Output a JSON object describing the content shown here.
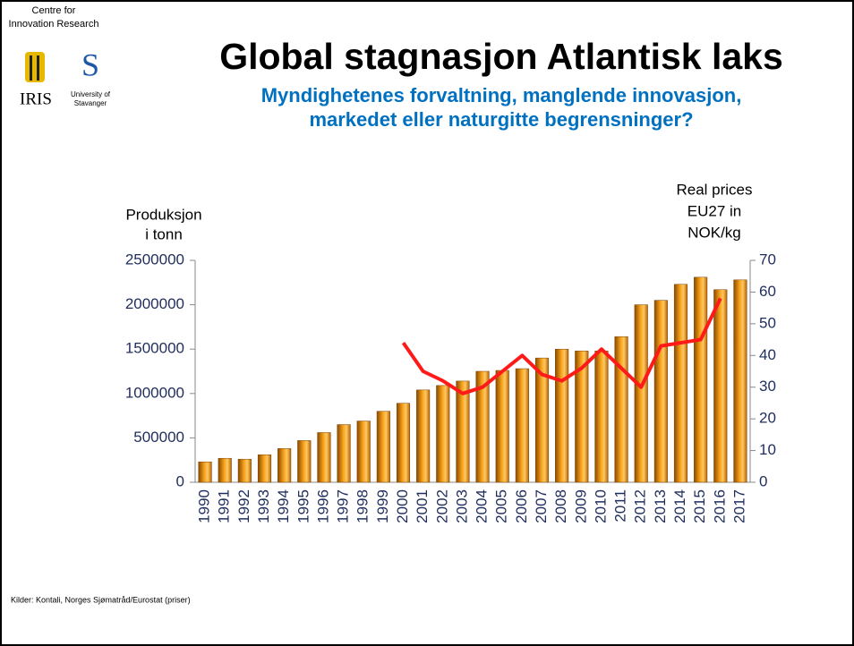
{
  "logo": {
    "org_line1": "Centre for",
    "org_line2": "Innovation Research",
    "iris": "IRIS",
    "uni_line1": "University of",
    "uni_line2": "Stavanger"
  },
  "chart_data": {
    "type": "bar_line",
    "title": "Global stagnasjon Atlantisk laks",
    "subtitle_lines": [
      "Myndighetenes forvaltning, manglende innovasjon,",
      "markedet eller naturgitte begrensninger?"
    ],
    "ylabel_lines": [
      "Produksjon",
      "i tonn"
    ],
    "y2label_lines": [
      "Real prices",
      "EU27 in",
      "NOK/kg"
    ],
    "categories": [
      "1990",
      "1991",
      "1992",
      "1993",
      "1994",
      "1995",
      "1996",
      "1997",
      "1998",
      "1999",
      "2000",
      "2001",
      "2002",
      "2003",
      "2004",
      "2005",
      "2006",
      "2007",
      "2008",
      "2009",
      "2010",
      "2011",
      "2012",
      "2013",
      "2014",
      "2015",
      "2016",
      "2017"
    ],
    "series": [
      {
        "name": "Produksjon",
        "type": "bar",
        "color": "#e08a00",
        "values": [
          230000,
          270000,
          260000,
          310000,
          380000,
          470000,
          560000,
          650000,
          690000,
          800000,
          890000,
          1040000,
          1090000,
          1140000,
          1250000,
          1260000,
          1280000,
          1400000,
          1500000,
          1480000,
          1480000,
          1640000,
          2000000,
          2050000,
          2230000,
          2310000,
          2170000,
          2280000
        ]
      },
      {
        "name": "Real prices",
        "type": "line",
        "axis": "y2",
        "color": "#ff1a1a",
        "values": [
          null,
          null,
          null,
          null,
          null,
          null,
          null,
          null,
          null,
          null,
          44,
          35,
          32,
          28,
          30,
          35,
          40,
          34,
          32,
          36,
          42,
          36,
          30,
          43,
          44,
          45,
          58,
          null
        ]
      }
    ],
    "ylim": [
      0,
      2500000
    ],
    "yticks": [
      0,
      500000,
      1000000,
      1500000,
      2000000,
      2500000
    ],
    "y2lim": [
      0,
      70
    ],
    "y2ticks": [
      0,
      10,
      20,
      30,
      40,
      50,
      60,
      70
    ],
    "grid": false
  },
  "footnote": "Kilder: Kontali, Norges Sjømatråd/Eurostat (priser)"
}
